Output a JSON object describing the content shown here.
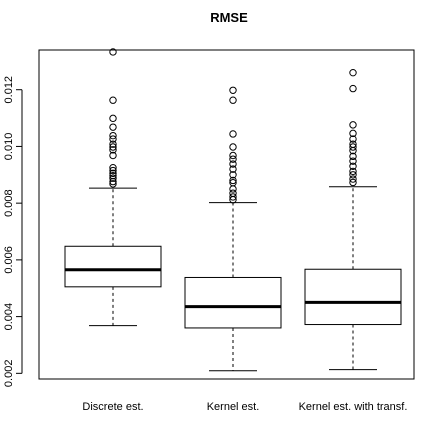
{
  "chart_data": {
    "type": "boxplot",
    "title": "RMSE",
    "xlabel": "",
    "ylabel": "",
    "ylim": [
      0.0018,
      0.0134
    ],
    "yticks": [
      0.002,
      0.004,
      0.006,
      0.008,
      0.01,
      0.012
    ],
    "ytick_labels": [
      "0.002",
      "0.004",
      "0.006",
      "0.008",
      "0.010",
      "0.012"
    ],
    "grid": false,
    "categories": [
      "Discrete est.",
      "Kernel est.",
      "Kernel est. with transf."
    ],
    "boxes": [
      {
        "whisker_low": 0.00368,
        "q1": 0.00505,
        "median": 0.00565,
        "q3": 0.00648,
        "whisker_high": 0.00853,
        "outliers": [
          0.01333,
          0.01163,
          0.01099,
          0.01068,
          0.01038,
          0.01026,
          0.01008,
          0.00998,
          0.00988,
          0.00968,
          0.00925,
          0.00915,
          0.00905,
          0.00897,
          0.00888,
          0.00876,
          0.00868
        ]
      },
      {
        "whisker_low": 0.00209,
        "q1": 0.0036,
        "median": 0.00435,
        "q3": 0.00538,
        "whisker_high": 0.00802,
        "outliers": [
          0.01198,
          0.01163,
          0.01044,
          0.00998,
          0.00968,
          0.00955,
          0.00938,
          0.0092,
          0.009,
          0.0088,
          0.00872,
          0.0085,
          0.00835,
          0.00822,
          0.00812
        ]
      },
      {
        "whisker_low": 0.00213,
        "q1": 0.00372,
        "median": 0.0045,
        "q3": 0.00567,
        "whisker_high": 0.00858,
        "outliers": [
          0.0126,
          0.01204,
          0.01076,
          0.01046,
          0.01026,
          0.01008,
          0.00998,
          0.00985,
          0.00965,
          0.00948,
          0.0093,
          0.00912,
          0.009,
          0.00885,
          0.00873
        ]
      }
    ]
  }
}
